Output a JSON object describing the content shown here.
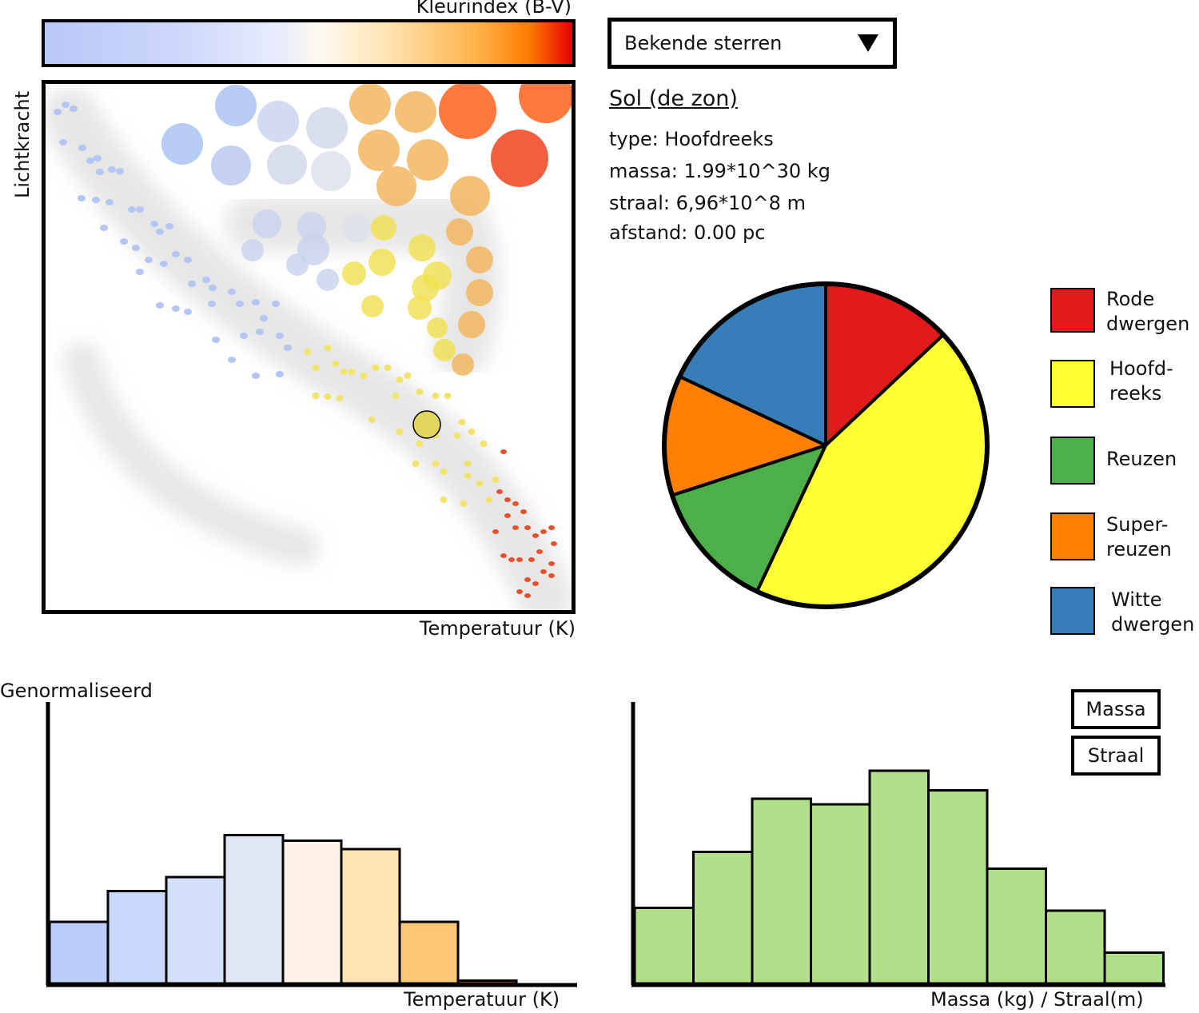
{
  "hr_diagram": {
    "colorbar_label": "Kleurindex (B-V)",
    "y_label": "Lichtkracht",
    "x_label": "Temperatuur (K)"
  },
  "selector": {
    "label": "Bekende sterren"
  },
  "selected_star": {
    "name": "Sol (de zon)",
    "type_line": "type: Hoofdreeks",
    "mass_line": "massa: 1.99*10^30 kg",
    "radius_line": "straal: 6,96*10^8 m",
    "distance_line": "afstand: 0.00 pc"
  },
  "legend": {
    "red_dwarfs_1": "Rode",
    "red_dwarfs_2": "dwergen",
    "main_seq_1": "Hoofd-",
    "main_seq_2": "reeks",
    "giants_1": "Reuzen",
    "supergiants_1": "Super-",
    "supergiants_2": "reuzen",
    "white_dwarfs_1": "Witte",
    "white_dwarfs_2": "dwergen"
  },
  "histograms": {
    "y_label": "Genormaliseerd",
    "temp_x_label": "Temperatuur (K)",
    "mass_x_label": "Massa (kg) / Straal(m)",
    "toggle_mass": "Massa",
    "toggle_radius": "Straal"
  },
  "colors": {
    "red_dwarfs": "#e31a1c",
    "main_sequence": "#ffff33",
    "giants": "#4daf4a",
    "supergiants": "#ff7f00",
    "white_dwarfs": "#377eb8",
    "mass_hist": "#b2df8a"
  },
  "chart_data": [
    {
      "type": "pie",
      "slices": [
        {
          "label": "Rode dwergen",
          "value": 0.13,
          "color": "#e31a1c"
        },
        {
          "label": "Hoofdreeks",
          "value": 0.44,
          "color": "#ffff33"
        },
        {
          "label": "Reuzen",
          "value": 0.13,
          "color": "#4daf4a"
        },
        {
          "label": "Superreuzen",
          "value": 0.12,
          "color": "#ff7f00"
        },
        {
          "label": "Witte dwergen",
          "value": 0.18,
          "color": "#377eb8"
        }
      ]
    },
    {
      "type": "bar",
      "xlabel": "Temperatuur (K)",
      "ylabel": "Genormaliseerd",
      "values": [
        0.22,
        0.33,
        0.38,
        0.53,
        0.51,
        0.48,
        0.22,
        0.01
      ],
      "colors": [
        "#bccdfa",
        "#cad8fb",
        "#d3e0fb",
        "#e1e6f7",
        "#fff3e9",
        "#ffe2b3",
        "#ffc878",
        "#ff7a00"
      ],
      "ylim": [
        0,
        1
      ]
    },
    {
      "type": "bar",
      "xlabel": "Massa (kg) / Straal(m)",
      "values": [
        0.27,
        0.47,
        0.66,
        0.64,
        0.76,
        0.69,
        0.41,
        0.26,
        0.11
      ],
      "color": "#b2df8a",
      "ylim": [
        0,
        1
      ]
    },
    {
      "type": "scatter",
      "xlabel": "Temperatuur (K)",
      "ylabel": "Lichtkracht",
      "highlighted": "Sol (de zon)"
    }
  ]
}
